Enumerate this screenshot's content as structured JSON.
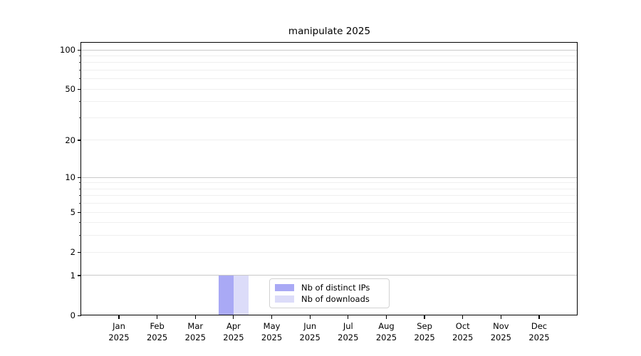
{
  "chart_data": {
    "type": "bar",
    "title": "manipulate 2025",
    "categories": [
      "Jan",
      "Feb",
      "Mar",
      "Apr",
      "May",
      "Jun",
      "Jul",
      "Aug",
      "Sep",
      "Oct",
      "Nov",
      "Dec"
    ],
    "x_year": "2025",
    "series": [
      {
        "name": "Nb of distinct IPs",
        "color": "#a9a9f5",
        "values": [
          0,
          0,
          0,
          1,
          0,
          0,
          0,
          0,
          0,
          0,
          0,
          0
        ]
      },
      {
        "name": "Nb of downloads",
        "color": "#dcdcf9",
        "values": [
          0,
          0,
          0,
          1,
          0,
          0,
          0,
          0,
          0,
          0,
          0,
          0
        ]
      }
    ],
    "y_axis": {
      "scale": "log1p",
      "range": [
        0,
        100
      ],
      "tick_labels": [
        0,
        1,
        2,
        5,
        10,
        20,
        50,
        100
      ],
      "major_gridlines": [
        1,
        10,
        100
      ],
      "minor_gridlines": [
        2,
        3,
        4,
        5,
        6,
        7,
        8,
        9,
        20,
        30,
        40,
        50,
        60,
        70,
        80,
        90
      ]
    },
    "legend_position": "lower center",
    "grid": true,
    "colors": {
      "major_grid": "#c9c9c9",
      "minor_grid": "#efefef",
      "spine": "#000000",
      "text": "#000000"
    }
  }
}
